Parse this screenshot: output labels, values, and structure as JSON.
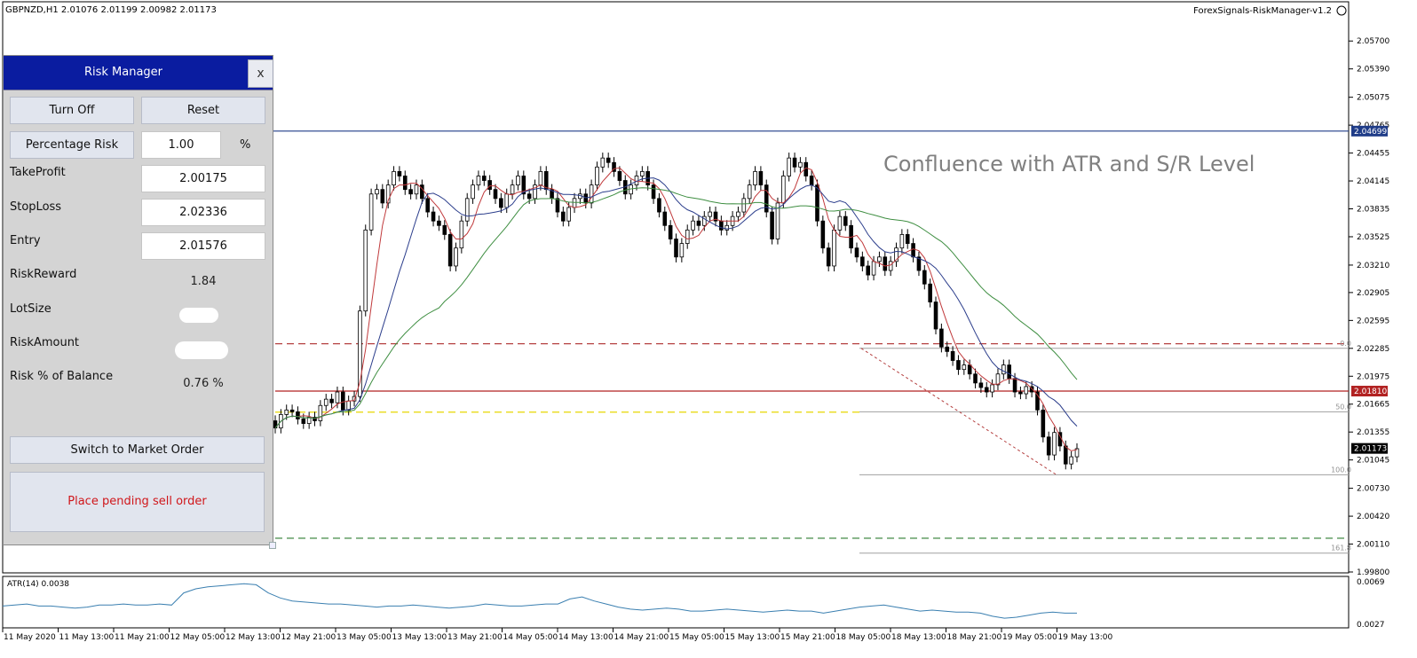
{
  "chart_header": {
    "symbol_info": "GBPNZD,H1  2.01076 2.01199 2.00982 2.01173",
    "ea_label": "ForexSignals-RiskManager-v1.2"
  },
  "annotation_text": "Confluence with ATR and S/R Level",
  "risk_manager": {
    "title": "Risk Manager",
    "close_label": "x",
    "turn_off_label": "Turn Off",
    "reset_label": "Reset",
    "percentage_risk_label": "Percentage Risk",
    "percentage_risk_value": "1.00",
    "percent_unit": "%",
    "take_profit_label": "TakeProfit",
    "take_profit_value": "2.00175",
    "stop_loss_label": "StopLoss",
    "stop_loss_value": "2.02336",
    "entry_label": "Entry",
    "entry_value": "2.01576",
    "risk_reward_label": "RiskReward",
    "risk_reward_value": "1.84",
    "lot_size_label": "LotSize",
    "risk_amount_label": "RiskAmount",
    "risk_pct_balance_label": "Risk % of Balance",
    "risk_pct_balance_value": "0.76 %",
    "switch_label": "Switch to Market Order",
    "place_order_label": "Place pending sell order"
  },
  "colors": {
    "price_line_high": "#1f3c88",
    "stop_line": "#b54040",
    "entry_line": "#b22222",
    "take_profit_line": "#2e7d32",
    "pending_line": "#e8d800",
    "ma_fast": "#c0393b",
    "ma_mid": "#2c3e8c",
    "ma_slow": "#3e8e41",
    "atr_line": "#3a7fb0"
  },
  "chart_data": [
    {
      "type": "candlestick",
      "title": "",
      "symbol": "GBPNZD",
      "timeframe": "H1",
      "y_ticks": [
        "2.05700",
        "2.05390",
        "2.05075",
        "2.04765",
        "2.04455",
        "2.04145",
        "2.03835",
        "2.03525",
        "2.03210",
        "2.02905",
        "2.02595",
        "2.02285",
        "2.01975",
        "2.01665",
        "2.01355",
        "2.01045",
        "2.00730",
        "2.00420",
        "2.00110",
        "1.99800"
      ],
      "x_ticks": [
        "11 May 2020",
        "11 May 13:00",
        "11 May 21:00",
        "12 May 05:00",
        "12 May 13:00",
        "12 May 21:00",
        "13 May 05:00",
        "13 May 13:00",
        "13 May 21:00",
        "14 May 05:00",
        "14 May 13:00",
        "14 May 21:00",
        "15 May 05:00",
        "15 May 13:00",
        "15 May 21:00",
        "18 May 05:00",
        "18 May 13:00",
        "18 May 21:00",
        "19 May 05:00",
        "19 May 13:00"
      ],
      "ylim": [
        1.998,
        2.0586
      ],
      "price_labels": [
        {
          "text": "2.04699",
          "value": 2.04699,
          "background": "#1f3c88",
          "color": "#ffffff"
        },
        {
          "text": "2.01810",
          "value": 2.0181,
          "background": "#b22222",
          "color": "#ffffff"
        },
        {
          "text": "2.01173",
          "value": 2.01173,
          "background": "#000000",
          "color": "#ffffff"
        }
      ],
      "fibonacci_levels": [
        {
          "label": "0.0",
          "value": 2.02285
        },
        {
          "label": "50.0",
          "value": 2.0158
        },
        {
          "label": "100.0",
          "value": 2.0088
        },
        {
          "label": "161.8",
          "value": 2.0001
        }
      ],
      "horizontal_lines": [
        {
          "name": "resistance",
          "value": 2.04699
        },
        {
          "name": "stop-loss",
          "value": 2.02336
        },
        {
          "name": "entry-level",
          "value": 2.0181
        },
        {
          "name": "pending-entry",
          "value": 2.01576
        },
        {
          "name": "take-profit",
          "value": 2.00175
        }
      ],
      "closes": [
        2.014,
        2.0155,
        2.016,
        2.0158,
        2.015,
        2.0145,
        2.0152,
        2.0148,
        2.0165,
        2.0172,
        2.0168,
        2.018,
        2.016,
        2.017,
        2.0175,
        2.027,
        2.036,
        2.04,
        2.0405,
        2.039,
        2.041,
        2.0425,
        2.042,
        2.0405,
        2.04,
        2.041,
        2.0395,
        2.038,
        2.037,
        2.0365,
        2.0355,
        2.032,
        2.034,
        2.037,
        2.0395,
        2.041,
        2.042,
        2.0415,
        2.0405,
        2.0395,
        2.0385,
        2.04,
        2.041,
        2.042,
        2.04,
        2.0395,
        2.041,
        2.0425,
        2.0405,
        2.0395,
        2.038,
        2.037,
        2.0385,
        2.0395,
        2.04,
        2.039,
        2.041,
        2.043,
        2.044,
        2.0435,
        2.0425,
        2.0415,
        2.04,
        2.041,
        2.042,
        2.0425,
        2.041,
        2.0395,
        2.038,
        2.0365,
        2.035,
        2.033,
        2.0345,
        2.036,
        2.037,
        2.0365,
        2.0375,
        2.038,
        2.037,
        2.036,
        2.0365,
        2.0375,
        2.038,
        2.0395,
        2.041,
        2.0425,
        2.041,
        2.038,
        2.035,
        2.039,
        2.042,
        2.044,
        2.043,
        2.0435,
        2.042,
        2.041,
        2.037,
        2.034,
        2.032,
        2.036,
        2.0375,
        2.0365,
        2.034,
        2.033,
        2.032,
        2.031,
        2.0325,
        2.033,
        2.0315,
        2.0325,
        2.034,
        2.0355,
        2.0345,
        2.033,
        2.0315,
        2.03,
        2.028,
        2.025,
        2.023,
        2.0225,
        2.0215,
        2.0205,
        2.021,
        2.02,
        2.019,
        2.0185,
        2.018,
        2.0188,
        2.02,
        2.021,
        2.0195,
        2.018,
        2.0178,
        2.0186,
        2.018,
        2.016,
        2.013,
        2.011,
        2.0135,
        2.012,
        2.01,
        2.0108,
        2.0117
      ],
      "moving_averages": [
        {
          "name": "ma-fast",
          "color": "#c0393b"
        },
        {
          "name": "ma-mid",
          "color": "#2c3e8c"
        },
        {
          "name": "ma-slow",
          "color": "#3e8e41"
        }
      ]
    },
    {
      "type": "line",
      "title": "",
      "indicator_label": "ATR(14) 0.0038",
      "y_ticks": [
        "0.0069",
        "0.0027"
      ],
      "ylim": [
        0.0027,
        0.0069
      ],
      "values": [
        0.0045,
        0.0046,
        0.0047,
        0.0045,
        0.0045,
        0.0044,
        0.0043,
        0.0044,
        0.0046,
        0.0046,
        0.0047,
        0.0046,
        0.0046,
        0.0047,
        0.0046,
        0.0058,
        0.0062,
        0.0064,
        0.0065,
        0.0066,
        0.0067,
        0.0066,
        0.0058,
        0.0053,
        0.005,
        0.0049,
        0.0048,
        0.0047,
        0.0047,
        0.0046,
        0.0045,
        0.0044,
        0.0045,
        0.0045,
        0.0046,
        0.0045,
        0.0044,
        0.0043,
        0.0044,
        0.0045,
        0.0047,
        0.0046,
        0.0045,
        0.0045,
        0.0046,
        0.0047,
        0.0047,
        0.0052,
        0.0054,
        0.005,
        0.0047,
        0.0044,
        0.0042,
        0.0041,
        0.0042,
        0.0043,
        0.0042,
        0.004,
        0.004,
        0.0041,
        0.0042,
        0.0041,
        0.004,
        0.0039,
        0.004,
        0.0041,
        0.004,
        0.004,
        0.0038,
        0.004,
        0.0042,
        0.0044,
        0.0045,
        0.0046,
        0.0044,
        0.0042,
        0.004,
        0.0041,
        0.004,
        0.0039,
        0.0039,
        0.0038,
        0.0035,
        0.0033,
        0.0034,
        0.0036,
        0.0038,
        0.0039,
        0.0038,
        0.0038
      ]
    }
  ]
}
